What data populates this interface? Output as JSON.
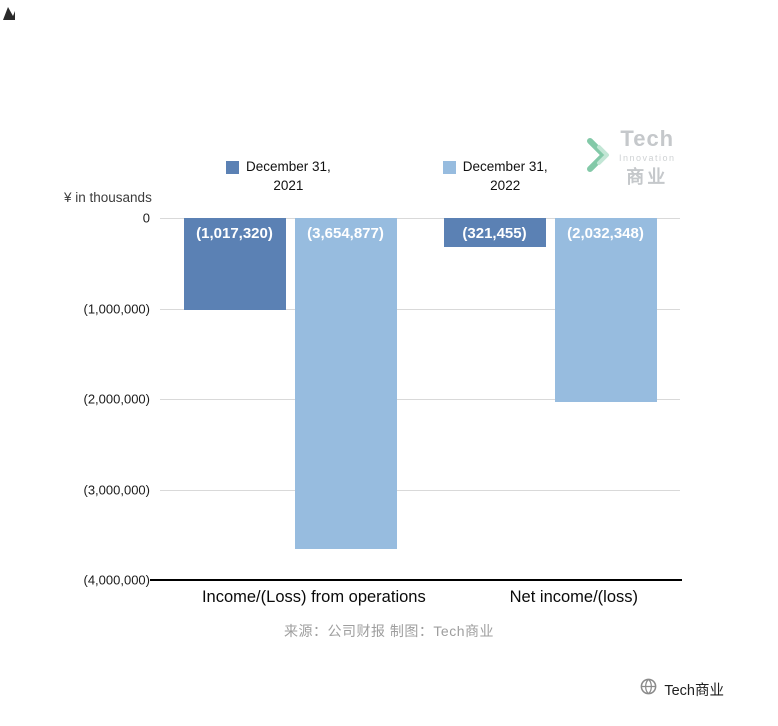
{
  "page": {
    "unit_label": "¥  in thousands",
    "source_text": "来源：公司财报 制图：Tech商业",
    "watermark_text": "Tech商业"
  },
  "logo": {
    "name": "Tech",
    "sub": "Innovation",
    "cn": "商业"
  },
  "legend": {
    "items": [
      {
        "label_line1": "December 31,",
        "label_line2": "2021",
        "color": "#5b81b4"
      },
      {
        "label_line1": "December 31,",
        "label_line2": "2022",
        "color": "#97bcdf"
      }
    ]
  },
  "chart_data": {
    "type": "bar",
    "title": "",
    "unit": "¥ in thousands",
    "categories": [
      "Income/(Loss) from operations",
      "Net income/(loss)"
    ],
    "series": [
      {
        "name": "December 31, 2021",
        "color": "#5b81b4",
        "values": [
          -1017320,
          -321455
        ],
        "labels": [
          "(1,017,320)",
          "(321,455)"
        ]
      },
      {
        "name": "December 31, 2022",
        "color": "#97bcdf",
        "values": [
          -3654877,
          -2032348
        ],
        "labels": [
          "(3,654,877)",
          "(2,032,348)"
        ]
      }
    ],
    "ylim": [
      -4000000,
      0
    ],
    "yticks": [
      {
        "value": 0,
        "label": "0"
      },
      {
        "value": -1000000,
        "label": "(1,000,000)"
      },
      {
        "value": -2000000,
        "label": "(2,000,000)"
      },
      {
        "value": -3000000,
        "label": "(3,000,000)"
      },
      {
        "value": -4000000,
        "label": "(4,000,000)"
      }
    ],
    "grid": true,
    "legend_position": "top"
  }
}
